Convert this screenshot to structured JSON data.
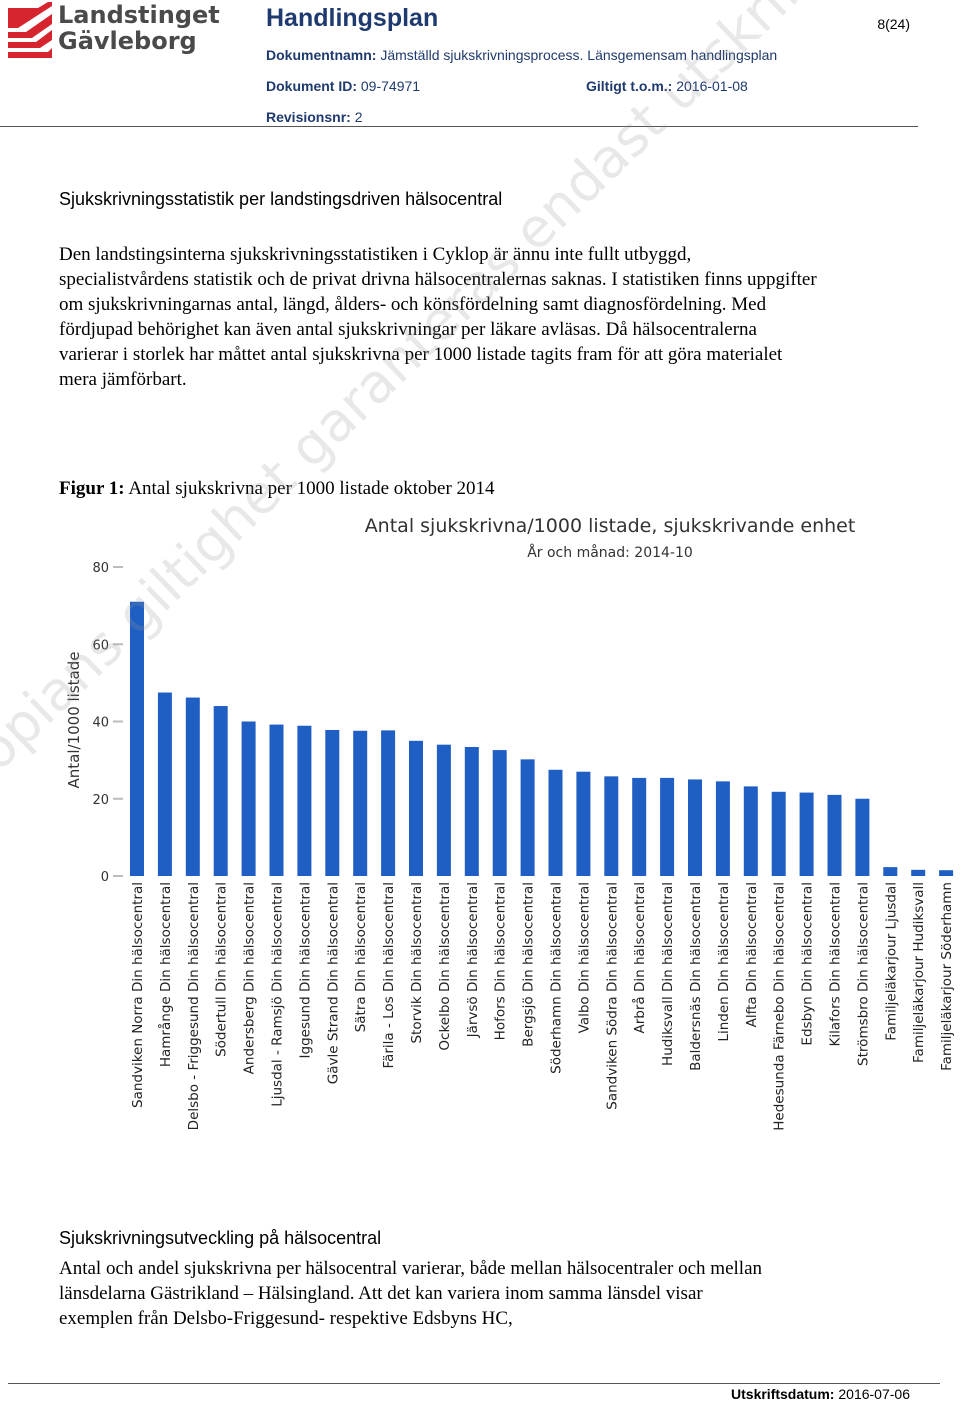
{
  "header": {
    "logo_line1": "Landstinget",
    "logo_line2": "Gävleborg",
    "title": "Handlingsplan",
    "page": "8(24)",
    "doc_name_label": "Dokumentnamn:",
    "doc_name": "Jämställd sjukskrivningsprocess.  Länsgemensam handlingsplan",
    "doc_id_label": "Dokument ID:",
    "doc_id": "09-74971",
    "valid_label": "Giltigt t.o.m.:",
    "valid": "2016-01-08",
    "revision_label": "Revisionsnr:",
    "revision": "2"
  },
  "section1": {
    "title": "Sjukskrivningsstatistik per landstingsdriven hälsocentral",
    "paragraph": "Den landstingsinterna sjukskrivningsstatistiken i Cyklop är ännu inte fullt utbyggd, specialistvårdens statistik och de privat drivna hälsocentralernas saknas. I statistiken finns uppgifter om sjukskrivningarnas antal, längd, ålders- och könsfördelning samt diagnosfördelning. Med fördjupad behörighet kan även antal sjukskrivningar per läkare avläsas. Då hälsocentralerna varierar i storlek har måttet antal sjukskrivna per 1000 listade tagits fram för att göra materialet mera jämförbart."
  },
  "figure": {
    "label": "Figur 1:",
    "caption": "Antal sjukskrivna per 1000 listade oktober 2014"
  },
  "chart_data": {
    "type": "bar",
    "title": "Antal sjukskrivna/1000 listade, sjukskrivande enhet",
    "subtitle": "År och månad: 2014-10",
    "xlabel": "",
    "ylabel": "Antal/1000 listade",
    "ylim": [
      0,
      80
    ],
    "yticks": [
      0,
      20,
      40,
      60,
      80
    ],
    "bar_color": "#1f5fc4",
    "grid": false,
    "categories": [
      "Sandviken Norra Din hälsocentral",
      "Hamrånge Din hälsocentral",
      "Delsbo - Friggesund Din hälsocentral",
      "Södertull Din hälsocentral",
      "Andersberg Din hälsocentral",
      "Ljusdal - Ramsjö Din hälsocentral",
      "Iggesund Din hälsocentral",
      "Gävle Strand Din hälsocentral",
      "Sätra Din hälsocentral",
      "Färila - Los Din hälsocentral",
      "Storvik Din hälsocentral",
      "Ockelbo Din hälsocentral",
      "Järvsö Din hälsocentral",
      "Hofors Din hälsocentral",
      "Bergsjö Din hälsocentral",
      "Söderhamn Din hälsocentral",
      "Valbo Din hälsocentral",
      "Sandviken Södra Din hälsocentral",
      "Arbrå Din hälsocentral",
      "Hudiksvall Din hälsocentral",
      "Baldersnäs Din hälsocentral",
      "Linden Din hälsocentral",
      "Alfta Din hälsocentral",
      "Hedesunda Färnebo Din hälsocentral",
      "Edsbyn Din hälsocentral",
      "Kilafors Din hälsocentral",
      "Strömsbro Din hälsocentral",
      "Familjeläkarjour Ljusdal",
      "Familjeläkarjour Hudiksvall",
      "Familjeläkarjour Söderhamn"
    ],
    "values": [
      71,
      47.5,
      46.2,
      44,
      40,
      39.2,
      38.9,
      37.8,
      37.6,
      37.7,
      35,
      34,
      33.4,
      32.6,
      30.2,
      27.5,
      27,
      25.8,
      25.4,
      25.4,
      25,
      24.5,
      23.2,
      21.8,
      21.6,
      21,
      20,
      2.3,
      1.6,
      1.5
    ]
  },
  "section2": {
    "title": "Sjukskrivningsutveckling på hälsocentral",
    "paragraph": "Antal och andel sjukskrivna per hälsocentral varierar, både mellan hälsocentraler och mellan länsdelarna Gästrikland – Hälsingland. Att det kan variera inom samma länsdel visar exemplen från Delsbo-Friggesund- respektive Edsbyns HC,"
  },
  "footer": {
    "label": "Utskriftsdatum:",
    "date": "2016-07-06"
  },
  "watermark": "Kopians giltighet garanteras endast utskriftsdatumet",
  "colors": {
    "header_blue": "#1f3a6e",
    "logo_red": "#d6252f",
    "bar_blue": "#1f5fc4"
  }
}
